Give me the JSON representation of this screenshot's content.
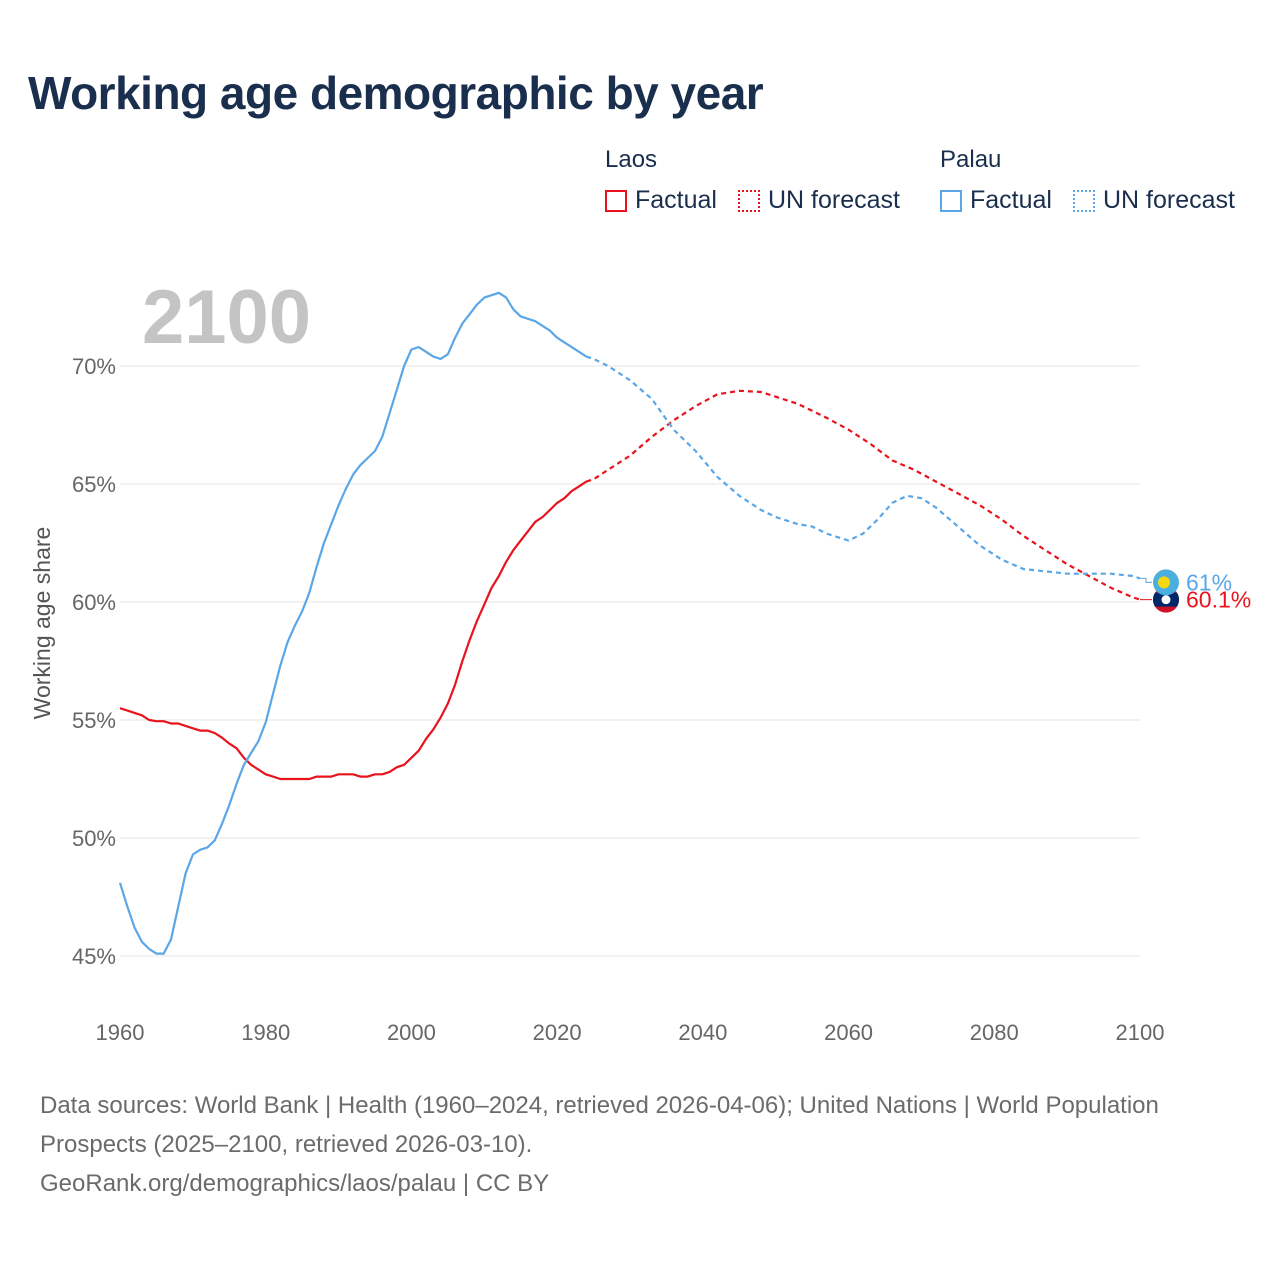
{
  "title": "Working age demographic by year",
  "legend": {
    "groups": [
      {
        "name": "Laos",
        "factual": "Factual",
        "forecast": "UN forecast",
        "color": "#e8131c"
      },
      {
        "name": "Palau",
        "factual": "Factual",
        "forecast": "UN forecast",
        "color": "#5aa6e6"
      }
    ]
  },
  "source": {
    "line1": "Data sources: World Bank | Health (1960–2024, retrieved 2026-04-06); United Nations | World Population Prospects (2025–2100, retrieved 2026-03-10).",
    "line2": "GeoRank.org/demographics/laos/palau | CC BY"
  },
  "chart_data": {
    "type": "line",
    "title": "Working age demographic by year",
    "ylabel": "Working age share",
    "xlabel": "",
    "current_year": "2100",
    "xlim": [
      1960,
      2100
    ],
    "ylim": [
      45,
      72
    ],
    "x_ticks": [
      1960,
      1980,
      2000,
      2020,
      2040,
      2060,
      2080,
      2100
    ],
    "x_tick_labels": [
      "1960",
      "1980",
      "2000",
      "2020",
      "2040",
      "2060",
      "2080",
      "2100"
    ],
    "y_ticks": [
      45,
      50,
      55,
      60,
      65,
      70
    ],
    "y_tick_labels": [
      "45%",
      "50%",
      "55%",
      "60%",
      "65%",
      "70%"
    ],
    "grid": true,
    "forecast_start": 2024,
    "series": [
      {
        "name": "Laos",
        "color": "#e8131c",
        "end_label": "60.1%",
        "flag": "laos",
        "points": [
          [
            1960,
            55.5
          ],
          [
            1962,
            55.3
          ],
          [
            1963,
            55.2
          ],
          [
            1964,
            55.0
          ],
          [
            1965,
            54.95
          ],
          [
            1966,
            54.95
          ],
          [
            1967,
            54.85
          ],
          [
            1968,
            54.85
          ],
          [
            1969,
            54.75
          ],
          [
            1970,
            54.65
          ],
          [
            1971,
            54.55
          ],
          [
            1972,
            54.55
          ],
          [
            1973,
            54.45
          ],
          [
            1974,
            54.25
          ],
          [
            1975,
            54.0
          ],
          [
            1976,
            53.8
          ],
          [
            1977,
            53.4
          ],
          [
            1978,
            53.1
          ],
          [
            1979,
            52.9
          ],
          [
            1980,
            52.7
          ],
          [
            1981,
            52.6
          ],
          [
            1982,
            52.5
          ],
          [
            1986,
            52.5
          ],
          [
            1987,
            52.6
          ],
          [
            1989,
            52.6
          ],
          [
            1990,
            52.7
          ],
          [
            1992,
            52.7
          ],
          [
            1993,
            52.6
          ],
          [
            1994,
            52.6
          ],
          [
            1995,
            52.7
          ],
          [
            1996,
            52.7
          ],
          [
            1997,
            52.8
          ],
          [
            1998,
            53.0
          ],
          [
            1999,
            53.1
          ],
          [
            2000,
            53.4
          ],
          [
            2001,
            53.7
          ],
          [
            2002,
            54.2
          ],
          [
            2003,
            54.6
          ],
          [
            2004,
            55.1
          ],
          [
            2005,
            55.7
          ],
          [
            2006,
            56.5
          ],
          [
            2007,
            57.5
          ],
          [
            2008,
            58.4
          ],
          [
            2009,
            59.2
          ],
          [
            2010,
            59.9
          ],
          [
            2011,
            60.6
          ],
          [
            2012,
            61.1
          ],
          [
            2013,
            61.7
          ],
          [
            2014,
            62.2
          ],
          [
            2015,
            62.6
          ],
          [
            2016,
            63.0
          ],
          [
            2017,
            63.4
          ],
          [
            2018,
            63.6
          ],
          [
            2019,
            63.9
          ],
          [
            2020,
            64.2
          ],
          [
            2021,
            64.4
          ],
          [
            2022,
            64.7
          ],
          [
            2023,
            64.9
          ],
          [
            2024,
            65.1
          ],
          [
            2025,
            65.2
          ],
          [
            2027,
            65.6
          ],
          [
            2030,
            66.2
          ],
          [
            2033,
            67.0
          ],
          [
            2036,
            67.7
          ],
          [
            2039,
            68.3
          ],
          [
            2042,
            68.8
          ],
          [
            2045,
            68.95
          ],
          [
            2048,
            68.9
          ],
          [
            2050,
            68.7
          ],
          [
            2053,
            68.4
          ],
          [
            2055,
            68.1
          ],
          [
            2057,
            67.8
          ],
          [
            2060,
            67.3
          ],
          [
            2063,
            66.7
          ],
          [
            2066,
            66.0
          ],
          [
            2069,
            65.6
          ],
          [
            2072,
            65.1
          ],
          [
            2075,
            64.6
          ],
          [
            2078,
            64.1
          ],
          [
            2081,
            63.5
          ],
          [
            2084,
            62.8
          ],
          [
            2087,
            62.2
          ],
          [
            2090,
            61.6
          ],
          [
            2093,
            61.1
          ],
          [
            2096,
            60.6
          ],
          [
            2099,
            60.2
          ],
          [
            2100,
            60.1
          ]
        ]
      },
      {
        "name": "Palau",
        "color": "#5aa6e6",
        "end_label": "61%",
        "flag": "palau",
        "points": [
          [
            1960,
            48.1
          ],
          [
            1961,
            47.1
          ],
          [
            1962,
            46.2
          ],
          [
            1963,
            45.6
          ],
          [
            1964,
            45.3
          ],
          [
            1965,
            45.1
          ],
          [
            1966,
            45.1
          ],
          [
            1967,
            45.7
          ],
          [
            1968,
            47.1
          ],
          [
            1969,
            48.5
          ],
          [
            1970,
            49.3
          ],
          [
            1971,
            49.5
          ],
          [
            1972,
            49.6
          ],
          [
            1973,
            49.9
          ],
          [
            1974,
            50.6
          ],
          [
            1975,
            51.4
          ],
          [
            1976,
            52.3
          ],
          [
            1977,
            53.1
          ],
          [
            1978,
            53.6
          ],
          [
            1979,
            54.1
          ],
          [
            1980,
            54.9
          ],
          [
            1981,
            56.1
          ],
          [
            1982,
            57.3
          ],
          [
            1983,
            58.3
          ],
          [
            1984,
            59.0
          ],
          [
            1985,
            59.6
          ],
          [
            1986,
            60.4
          ],
          [
            1987,
            61.5
          ],
          [
            1988,
            62.5
          ],
          [
            1989,
            63.3
          ],
          [
            1990,
            64.1
          ],
          [
            1991,
            64.8
          ],
          [
            1992,
            65.4
          ],
          [
            1993,
            65.8
          ],
          [
            1994,
            66.1
          ],
          [
            1995,
            66.4
          ],
          [
            1996,
            67.0
          ],
          [
            1997,
            68.0
          ],
          [
            1998,
            69.0
          ],
          [
            1999,
            70.0
          ],
          [
            2000,
            70.7
          ],
          [
            2001,
            70.8
          ],
          [
            2002,
            70.6
          ],
          [
            2003,
            70.4
          ],
          [
            2004,
            70.3
          ],
          [
            2005,
            70.5
          ],
          [
            2006,
            71.2
          ],
          [
            2007,
            71.8
          ],
          [
            2008,
            72.2
          ],
          [
            2009,
            72.6
          ],
          [
            2010,
            72.9
          ],
          [
            2011,
            73.0
          ],
          [
            2012,
            73.1
          ],
          [
            2013,
            72.9
          ],
          [
            2014,
            72.4
          ],
          [
            2015,
            72.1
          ],
          [
            2016,
            72.0
          ],
          [
            2017,
            71.9
          ],
          [
            2018,
            71.7
          ],
          [
            2019,
            71.5
          ],
          [
            2020,
            71.2
          ],
          [
            2021,
            71.0
          ],
          [
            2022,
            70.8
          ],
          [
            2023,
            70.6
          ],
          [
            2024,
            70.4
          ],
          [
            2025,
            70.3
          ],
          [
            2027,
            70.0
          ],
          [
            2030,
            69.4
          ],
          [
            2033,
            68.6
          ],
          [
            2036,
            67.3
          ],
          [
            2039,
            66.4
          ],
          [
            2042,
            65.3
          ],
          [
            2045,
            64.5
          ],
          [
            2048,
            63.9
          ],
          [
            2050,
            63.6
          ],
          [
            2053,
            63.3
          ],
          [
            2055,
            63.2
          ],
          [
            2057,
            62.9
          ],
          [
            2059,
            62.7
          ],
          [
            2060,
            62.6
          ],
          [
            2062,
            62.9
          ],
          [
            2064,
            63.5
          ],
          [
            2066,
            64.2
          ],
          [
            2068,
            64.5
          ],
          [
            2070,
            64.4
          ],
          [
            2072,
            64.0
          ],
          [
            2075,
            63.2
          ],
          [
            2078,
            62.4
          ],
          [
            2081,
            61.8
          ],
          [
            2084,
            61.4
          ],
          [
            2087,
            61.3
          ],
          [
            2090,
            61.2
          ],
          [
            2093,
            61.2
          ],
          [
            2096,
            61.2
          ],
          [
            2099,
            61.1
          ],
          [
            2100,
            61.0
          ]
        ]
      }
    ]
  }
}
